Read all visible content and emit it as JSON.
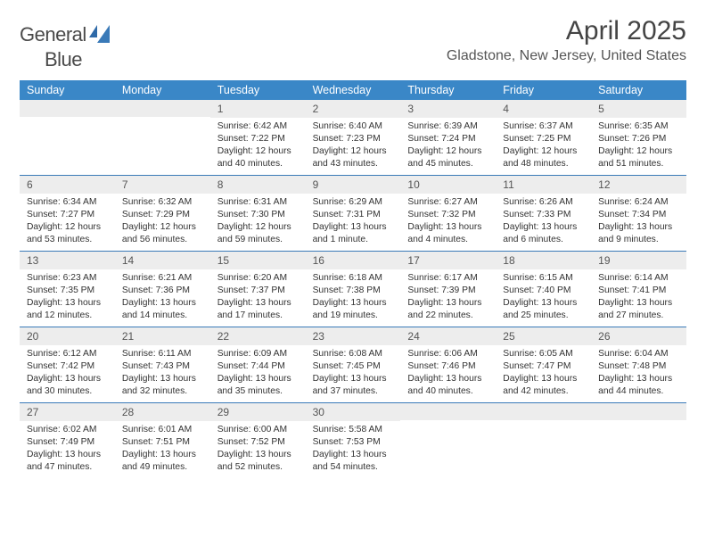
{
  "logo": {
    "word1": "General",
    "word2": "Blue"
  },
  "title": "April 2025",
  "subtitle": "Gladstone, New Jersey, United States",
  "colors": {
    "header_bg": "#3a87c7",
    "header_text": "#ffffff",
    "week_border": "#3a7ab8",
    "daynum_bg": "#ededed",
    "body_text": "#333333",
    "logo_gray": "#4a4a4a",
    "logo_blue": "#3a7ab8"
  },
  "dow": [
    "Sunday",
    "Monday",
    "Tuesday",
    "Wednesday",
    "Thursday",
    "Friday",
    "Saturday"
  ],
  "weeks": [
    [
      {
        "n": "",
        "sr": "",
        "ss": "",
        "dl1": "",
        "dl2": ""
      },
      {
        "n": "",
        "sr": "",
        "ss": "",
        "dl1": "",
        "dl2": ""
      },
      {
        "n": "1",
        "sr": "Sunrise: 6:42 AM",
        "ss": "Sunset: 7:22 PM",
        "dl1": "Daylight: 12 hours",
        "dl2": "and 40 minutes."
      },
      {
        "n": "2",
        "sr": "Sunrise: 6:40 AM",
        "ss": "Sunset: 7:23 PM",
        "dl1": "Daylight: 12 hours",
        "dl2": "and 43 minutes."
      },
      {
        "n": "3",
        "sr": "Sunrise: 6:39 AM",
        "ss": "Sunset: 7:24 PM",
        "dl1": "Daylight: 12 hours",
        "dl2": "and 45 minutes."
      },
      {
        "n": "4",
        "sr": "Sunrise: 6:37 AM",
        "ss": "Sunset: 7:25 PM",
        "dl1": "Daylight: 12 hours",
        "dl2": "and 48 minutes."
      },
      {
        "n": "5",
        "sr": "Sunrise: 6:35 AM",
        "ss": "Sunset: 7:26 PM",
        "dl1": "Daylight: 12 hours",
        "dl2": "and 51 minutes."
      }
    ],
    [
      {
        "n": "6",
        "sr": "Sunrise: 6:34 AM",
        "ss": "Sunset: 7:27 PM",
        "dl1": "Daylight: 12 hours",
        "dl2": "and 53 minutes."
      },
      {
        "n": "7",
        "sr": "Sunrise: 6:32 AM",
        "ss": "Sunset: 7:29 PM",
        "dl1": "Daylight: 12 hours",
        "dl2": "and 56 minutes."
      },
      {
        "n": "8",
        "sr": "Sunrise: 6:31 AM",
        "ss": "Sunset: 7:30 PM",
        "dl1": "Daylight: 12 hours",
        "dl2": "and 59 minutes."
      },
      {
        "n": "9",
        "sr": "Sunrise: 6:29 AM",
        "ss": "Sunset: 7:31 PM",
        "dl1": "Daylight: 13 hours",
        "dl2": "and 1 minute."
      },
      {
        "n": "10",
        "sr": "Sunrise: 6:27 AM",
        "ss": "Sunset: 7:32 PM",
        "dl1": "Daylight: 13 hours",
        "dl2": "and 4 minutes."
      },
      {
        "n": "11",
        "sr": "Sunrise: 6:26 AM",
        "ss": "Sunset: 7:33 PM",
        "dl1": "Daylight: 13 hours",
        "dl2": "and 6 minutes."
      },
      {
        "n": "12",
        "sr": "Sunrise: 6:24 AM",
        "ss": "Sunset: 7:34 PM",
        "dl1": "Daylight: 13 hours",
        "dl2": "and 9 minutes."
      }
    ],
    [
      {
        "n": "13",
        "sr": "Sunrise: 6:23 AM",
        "ss": "Sunset: 7:35 PM",
        "dl1": "Daylight: 13 hours",
        "dl2": "and 12 minutes."
      },
      {
        "n": "14",
        "sr": "Sunrise: 6:21 AM",
        "ss": "Sunset: 7:36 PM",
        "dl1": "Daylight: 13 hours",
        "dl2": "and 14 minutes."
      },
      {
        "n": "15",
        "sr": "Sunrise: 6:20 AM",
        "ss": "Sunset: 7:37 PM",
        "dl1": "Daylight: 13 hours",
        "dl2": "and 17 minutes."
      },
      {
        "n": "16",
        "sr": "Sunrise: 6:18 AM",
        "ss": "Sunset: 7:38 PM",
        "dl1": "Daylight: 13 hours",
        "dl2": "and 19 minutes."
      },
      {
        "n": "17",
        "sr": "Sunrise: 6:17 AM",
        "ss": "Sunset: 7:39 PM",
        "dl1": "Daylight: 13 hours",
        "dl2": "and 22 minutes."
      },
      {
        "n": "18",
        "sr": "Sunrise: 6:15 AM",
        "ss": "Sunset: 7:40 PM",
        "dl1": "Daylight: 13 hours",
        "dl2": "and 25 minutes."
      },
      {
        "n": "19",
        "sr": "Sunrise: 6:14 AM",
        "ss": "Sunset: 7:41 PM",
        "dl1": "Daylight: 13 hours",
        "dl2": "and 27 minutes."
      }
    ],
    [
      {
        "n": "20",
        "sr": "Sunrise: 6:12 AM",
        "ss": "Sunset: 7:42 PM",
        "dl1": "Daylight: 13 hours",
        "dl2": "and 30 minutes."
      },
      {
        "n": "21",
        "sr": "Sunrise: 6:11 AM",
        "ss": "Sunset: 7:43 PM",
        "dl1": "Daylight: 13 hours",
        "dl2": "and 32 minutes."
      },
      {
        "n": "22",
        "sr": "Sunrise: 6:09 AM",
        "ss": "Sunset: 7:44 PM",
        "dl1": "Daylight: 13 hours",
        "dl2": "and 35 minutes."
      },
      {
        "n": "23",
        "sr": "Sunrise: 6:08 AM",
        "ss": "Sunset: 7:45 PM",
        "dl1": "Daylight: 13 hours",
        "dl2": "and 37 minutes."
      },
      {
        "n": "24",
        "sr": "Sunrise: 6:06 AM",
        "ss": "Sunset: 7:46 PM",
        "dl1": "Daylight: 13 hours",
        "dl2": "and 40 minutes."
      },
      {
        "n": "25",
        "sr": "Sunrise: 6:05 AM",
        "ss": "Sunset: 7:47 PM",
        "dl1": "Daylight: 13 hours",
        "dl2": "and 42 minutes."
      },
      {
        "n": "26",
        "sr": "Sunrise: 6:04 AM",
        "ss": "Sunset: 7:48 PM",
        "dl1": "Daylight: 13 hours",
        "dl2": "and 44 minutes."
      }
    ],
    [
      {
        "n": "27",
        "sr": "Sunrise: 6:02 AM",
        "ss": "Sunset: 7:49 PM",
        "dl1": "Daylight: 13 hours",
        "dl2": "and 47 minutes."
      },
      {
        "n": "28",
        "sr": "Sunrise: 6:01 AM",
        "ss": "Sunset: 7:51 PM",
        "dl1": "Daylight: 13 hours",
        "dl2": "and 49 minutes."
      },
      {
        "n": "29",
        "sr": "Sunrise: 6:00 AM",
        "ss": "Sunset: 7:52 PM",
        "dl1": "Daylight: 13 hours",
        "dl2": "and 52 minutes."
      },
      {
        "n": "30",
        "sr": "Sunrise: 5:58 AM",
        "ss": "Sunset: 7:53 PM",
        "dl1": "Daylight: 13 hours",
        "dl2": "and 54 minutes."
      },
      {
        "n": "",
        "sr": "",
        "ss": "",
        "dl1": "",
        "dl2": ""
      },
      {
        "n": "",
        "sr": "",
        "ss": "",
        "dl1": "",
        "dl2": ""
      },
      {
        "n": "",
        "sr": "",
        "ss": "",
        "dl1": "",
        "dl2": ""
      }
    ]
  ]
}
